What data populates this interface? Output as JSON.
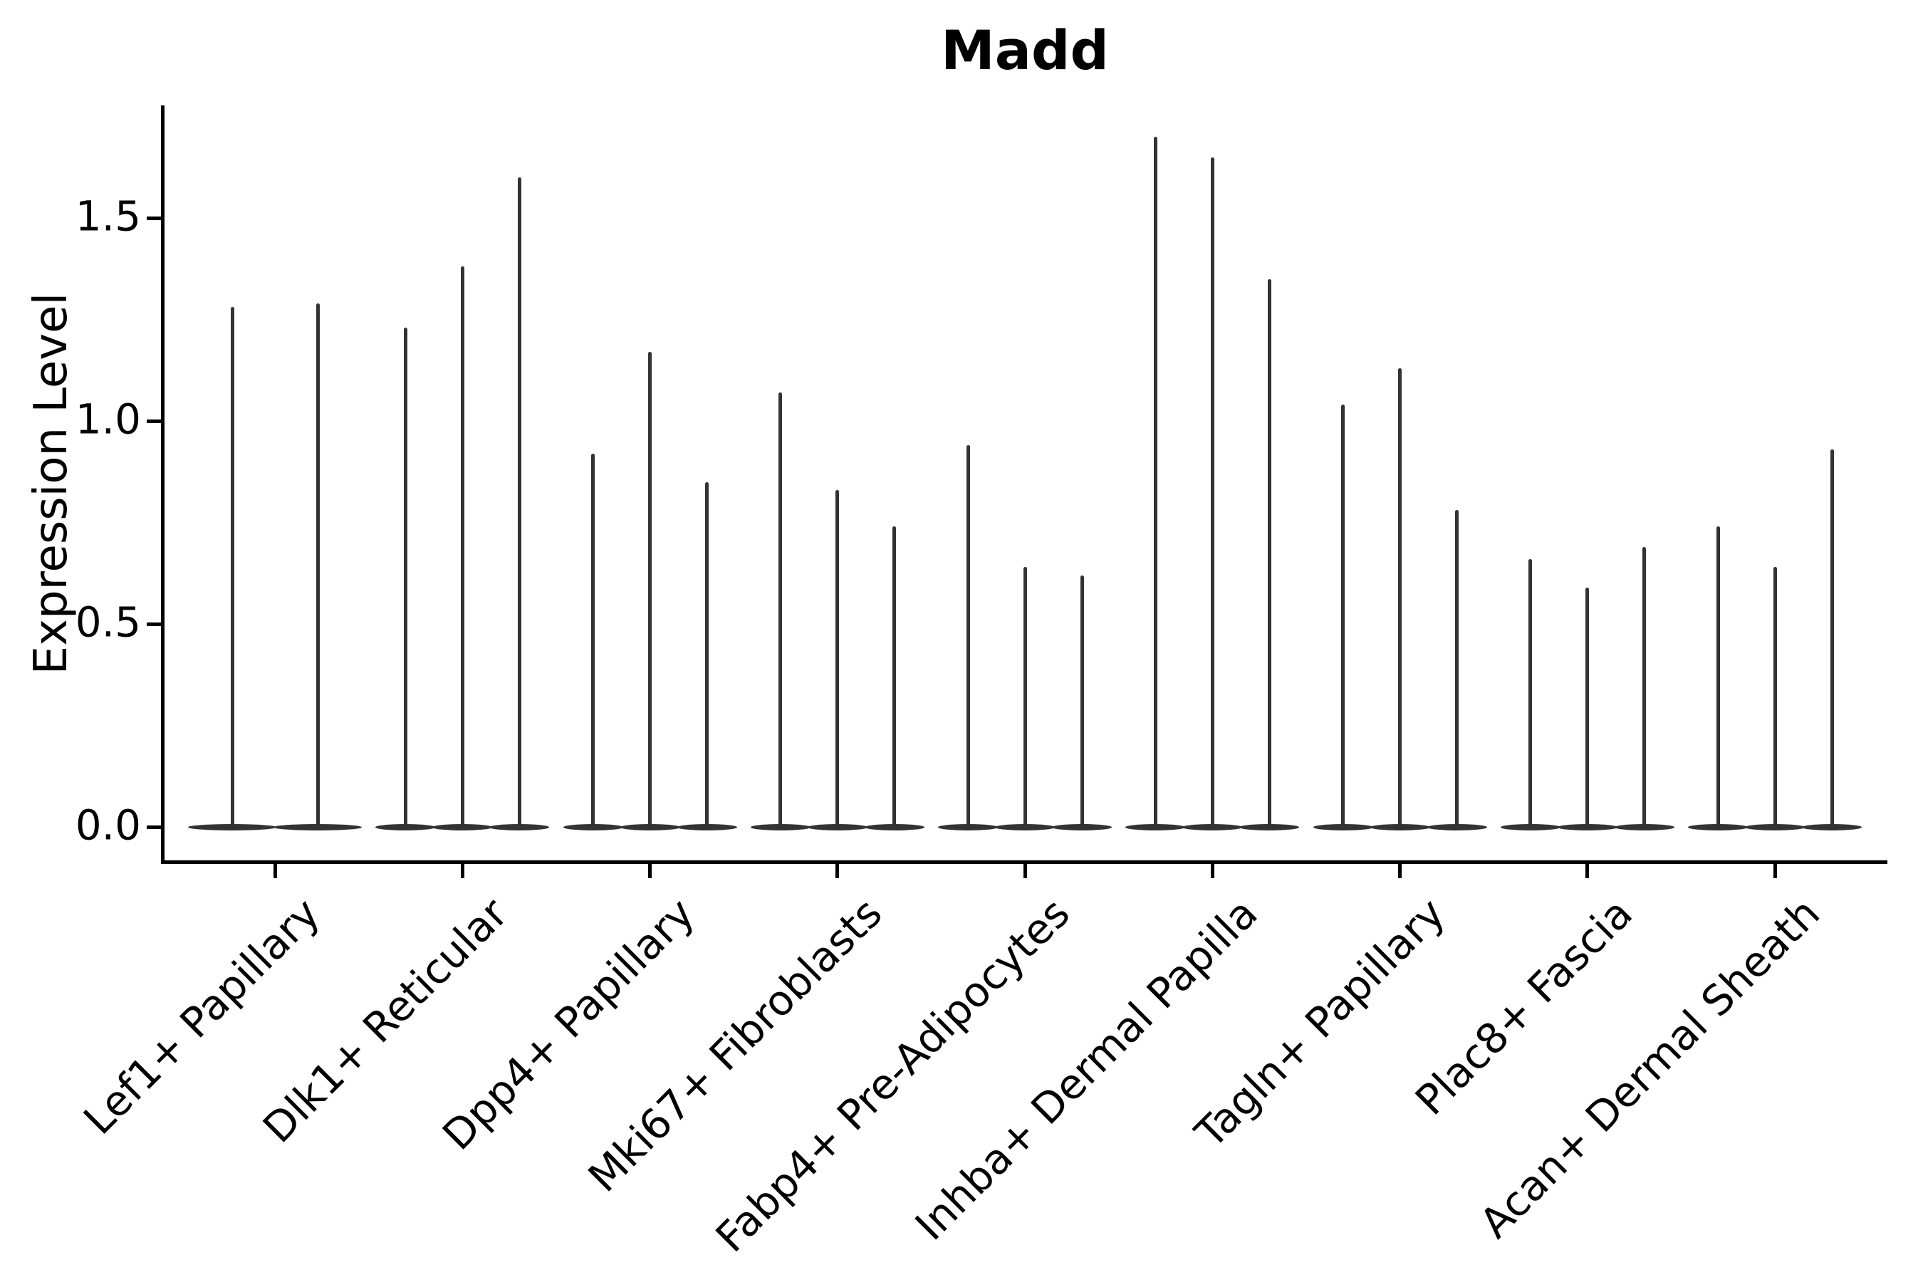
{
  "style": {
    "background": "#ffffff",
    "violin_color": "#333333",
    "axis_color": "#000000",
    "text_color": "#000000"
  },
  "chart_data": {
    "type": "violin",
    "title": "Madd",
    "ylabel": "Expression Level",
    "xlabel": "",
    "grid": false,
    "legend": null,
    "ylim": [
      -0.09,
      1.78
    ],
    "yticks": {
      "values": [
        0.0,
        0.5,
        1.0,
        1.5
      ],
      "labels": [
        "0.0",
        "0.5",
        "1.0",
        "1.5"
      ]
    },
    "categories": [
      "Lef1+ Papillary",
      "Dlk1+ Reticular",
      "Dpp4+ Papillary",
      "Mki67+ Fibroblasts",
      "Fabp4+ Pre-Adipocytes",
      "Inhba+ Dermal Papilla",
      "Tagln+ Papillary",
      "Plac8+ Fascia",
      "Acan+ Dermal Sheath"
    ],
    "series": [
      {
        "category": "Lef1+ Papillary",
        "violin_min": 0.0,
        "violin_maxima": [
          1.28,
          1.29
        ]
      },
      {
        "category": "Dlk1+ Reticular",
        "violin_min": 0.0,
        "violin_maxima": [
          1.23,
          1.38,
          1.6
        ]
      },
      {
        "category": "Dpp4+ Papillary",
        "violin_min": 0.0,
        "violin_maxima": [
          0.92,
          1.17,
          0.85
        ]
      },
      {
        "category": "Mki67+ Fibroblasts",
        "violin_min": 0.0,
        "violin_maxima": [
          1.07,
          0.83,
          0.74
        ]
      },
      {
        "category": "Fabp4+ Pre-Adipocytes",
        "violin_min": 0.0,
        "violin_maxima": [
          0.94,
          0.64,
          0.62
        ]
      },
      {
        "category": "Inhba+ Dermal Papilla",
        "violin_min": 0.0,
        "violin_maxima": [
          1.7,
          1.65,
          1.35
        ]
      },
      {
        "category": "Tagln+ Papillary",
        "violin_min": 0.0,
        "violin_maxima": [
          1.04,
          1.13,
          0.78
        ]
      },
      {
        "category": "Plac8+ Fascia",
        "violin_min": 0.0,
        "violin_maxima": [
          0.66,
          0.59,
          0.69
        ]
      },
      {
        "category": "Acan+ Dermal Sheath",
        "violin_min": 0.0,
        "violin_maxima": [
          0.74,
          0.64,
          0.93
        ]
      }
    ]
  }
}
